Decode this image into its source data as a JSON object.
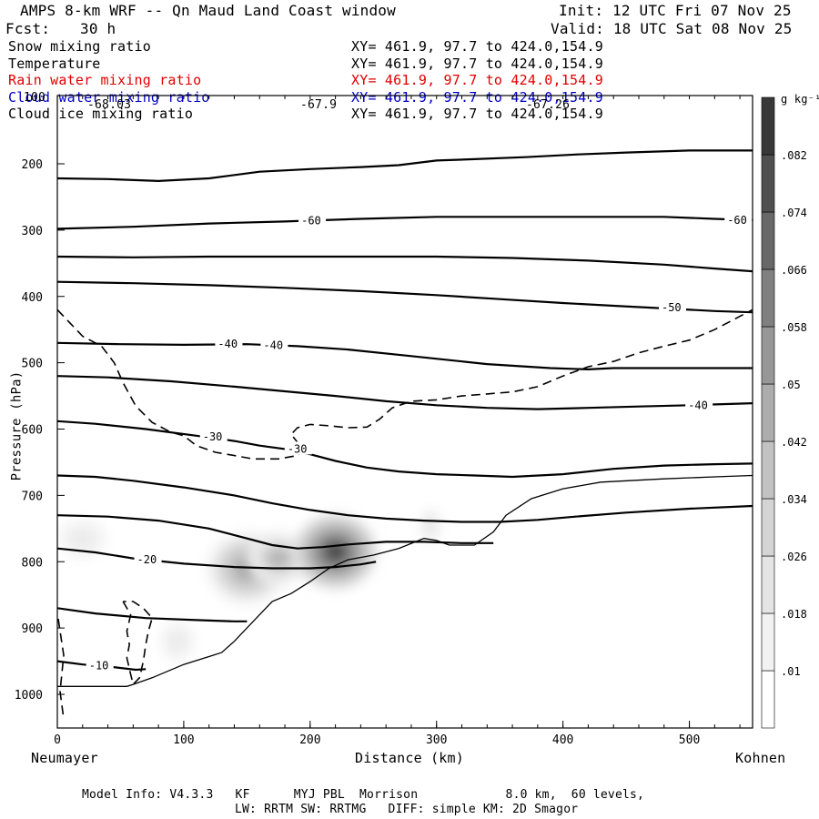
{
  "header": {
    "title": "AMPS 8-km WRF -- Qn Maud Land Coast window",
    "forecast_label": "Fcst:",
    "forecast_hours": "30 h",
    "init": "Init: 12 UTC Fri 07 Nov 25",
    "valid": "Valid: 18 UTC Sat 08 Nov 25"
  },
  "fields": [
    {
      "name": "Snow mixing ratio",
      "xy": "XY= 461.9, 97.7 to 424.0,154.9",
      "color": "#000000"
    },
    {
      "name": "Temperature",
      "xy": "XY= 461.9, 97.7 to 424.0,154.9",
      "color": "#000000"
    },
    {
      "name": "Rain water mixing ratio",
      "xy": "XY= 461.9, 97.7 to 424.0,154.9",
      "color": "#e00000"
    },
    {
      "name": "Cloud water mixing ratio",
      "xy": "XY= 461.9, 97.7 to 424.0,154.9",
      "color": "#0000c8"
    },
    {
      "name": "Cloud ice mixing ratio",
      "xy": "XY= 461.9, 97.7 to 424.0,154.9",
      "color": "#000000"
    }
  ],
  "overlay_labels": {
    "left": "-68.03",
    "mid": "-67.9",
    "right": "-67.26",
    "top_tick": "100"
  },
  "footer": {
    "line1": "Model Info: V4.3.3   KF      MYJ PBL  Morrison            8.0 km,  60 levels,",
    "line2": "LW: RRTM SW: RRTMG   DIFF: simple KM: 2D Smagor"
  },
  "chart_data": {
    "type": "contour",
    "xlabel": "Distance (km)",
    "ylabel": "Pressure (hPa)",
    "xlim": [
      0,
      550
    ],
    "ylim": [
      1050,
      100
    ],
    "x_ticks": [
      0,
      100,
      200,
      300,
      400,
      500
    ],
    "y_ticks": [
      200,
      300,
      400,
      500,
      600,
      700,
      800,
      900,
      1000
    ],
    "endpoint_left": "Neumayer",
    "endpoint_right": "Kohnen",
    "colorbar": {
      "unit": "g kg⁻¹",
      "levels": [
        0.01,
        0.018,
        0.026,
        0.034,
        0.042,
        0.05,
        0.058,
        0.066,
        0.074,
        0.082
      ],
      "labels": [
        ".01",
        ".018",
        ".026",
        ".034",
        ".042",
        ".05",
        ".058",
        ".066",
        ".074",
        ".082"
      ],
      "shades": [
        "#ffffff",
        "#f2f2f2",
        "#e4e4e4",
        "#d4d4d4",
        "#c2c2c2",
        "#adadad",
        "#979797",
        "#808080",
        "#686868",
        "#505050",
        "#383838"
      ]
    },
    "terrain": [
      [
        0,
        988
      ],
      [
        55,
        988
      ],
      [
        60,
        985
      ],
      [
        75,
        975
      ],
      [
        100,
        955
      ],
      [
        120,
        943
      ],
      [
        130,
        937
      ],
      [
        140,
        920
      ],
      [
        155,
        890
      ],
      [
        170,
        860
      ],
      [
        185,
        848
      ],
      [
        200,
        830
      ],
      [
        215,
        810
      ],
      [
        230,
        797
      ],
      [
        250,
        790
      ],
      [
        270,
        780
      ],
      [
        290,
        765
      ],
      [
        300,
        768
      ],
      [
        310,
        775
      ],
      [
        330,
        775
      ],
      [
        345,
        755
      ],
      [
        355,
        730
      ],
      [
        375,
        705
      ],
      [
        400,
        690
      ],
      [
        430,
        680
      ],
      [
        480,
        675
      ],
      [
        520,
        672
      ],
      [
        550,
        670
      ]
    ],
    "isotherms": [
      {
        "label": "-60",
        "points": [
          [
            0,
            222
          ],
          [
            40,
            223
          ],
          [
            80,
            226
          ],
          [
            120,
            222
          ],
          [
            160,
            212
          ],
          [
            200,
            208
          ],
          [
            240,
            205
          ],
          [
            270,
            202
          ],
          [
            300,
            195
          ],
          [
            330,
            193
          ],
          [
            370,
            190
          ],
          [
            410,
            186
          ],
          [
            450,
            183
          ],
          [
            500,
            180
          ],
          [
            550,
            180
          ]
        ],
        "label_positions": []
      },
      {
        "label": "-60",
        "points": [
          [
            0,
            298
          ],
          [
            60,
            295
          ],
          [
            120,
            290
          ],
          [
            180,
            287
          ],
          [
            240,
            283
          ],
          [
            300,
            280
          ],
          [
            360,
            280
          ],
          [
            420,
            280
          ],
          [
            480,
            280
          ],
          [
            520,
            283
          ],
          [
            550,
            285
          ]
        ],
        "label_positions": [
          [
            193,
            286
          ],
          [
            530,
            285
          ]
        ]
      },
      {
        "label": "",
        "points": [
          [
            0,
            340
          ],
          [
            60,
            341
          ],
          [
            120,
            340
          ],
          [
            180,
            340
          ],
          [
            240,
            340
          ],
          [
            300,
            340
          ],
          [
            360,
            342
          ],
          [
            420,
            346
          ],
          [
            480,
            352
          ],
          [
            520,
            358
          ],
          [
            550,
            362
          ]
        ],
        "label_positions": []
      },
      {
        "label": "-50",
        "points": [
          [
            0,
            378
          ],
          [
            60,
            380
          ],
          [
            120,
            383
          ],
          [
            180,
            387
          ],
          [
            240,
            392
          ],
          [
            300,
            398
          ],
          [
            350,
            404
          ],
          [
            400,
            410
          ],
          [
            440,
            414
          ],
          [
            480,
            418
          ],
          [
            520,
            422
          ],
          [
            550,
            424
          ]
        ],
        "label_positions": [
          [
            478,
            417
          ]
        ]
      },
      {
        "label": "-40",
        "points": [
          [
            0,
            470
          ],
          [
            50,
            472
          ],
          [
            100,
            473
          ],
          [
            150,
            472
          ],
          [
            190,
            475
          ],
          [
            230,
            480
          ],
          [
            280,
            490
          ],
          [
            340,
            502
          ],
          [
            390,
            508
          ],
          [
            420,
            510
          ],
          [
            440,
            508
          ],
          [
            480,
            508
          ],
          [
            520,
            508
          ],
          [
            550,
            508
          ]
        ],
        "label_positions": [
          [
            127,
            472
          ],
          [
            163,
            474
          ]
        ]
      },
      {
        "label": "-40",
        "points": [
          [
            0,
            520
          ],
          [
            40,
            522
          ],
          [
            90,
            528
          ],
          [
            140,
            536
          ],
          [
            180,
            543
          ],
          [
            220,
            550
          ],
          [
            260,
            558
          ],
          [
            300,
            564
          ],
          [
            340,
            568
          ],
          [
            380,
            570
          ],
          [
            420,
            568
          ],
          [
            460,
            566
          ],
          [
            500,
            564
          ],
          [
            550,
            561
          ]
        ],
        "label_positions": [
          [
            499,
            564
          ]
        ]
      },
      {
        "label": "-30",
        "points": [
          [
            0,
            588
          ],
          [
            30,
            592
          ],
          [
            70,
            600
          ],
          [
            110,
            610
          ],
          [
            140,
            618
          ],
          [
            160,
            625
          ],
          [
            180,
            630
          ],
          [
            200,
            638
          ],
          [
            220,
            648
          ],
          [
            245,
            658
          ],
          [
            270,
            664
          ],
          [
            300,
            668
          ],
          [
            330,
            670
          ],
          [
            360,
            672
          ],
          [
            400,
            668
          ],
          [
            440,
            660
          ],
          [
            480,
            655
          ],
          [
            520,
            653
          ],
          [
            550,
            652
          ]
        ],
        "label_positions": [
          [
            115,
            612
          ],
          [
            182,
            630
          ]
        ]
      },
      {
        "label": "",
        "points": [
          [
            0,
            670
          ],
          [
            30,
            672
          ],
          [
            60,
            678
          ],
          [
            100,
            688
          ],
          [
            140,
            700
          ],
          [
            170,
            712
          ],
          [
            200,
            722
          ],
          [
            230,
            730
          ],
          [
            260,
            735
          ],
          [
            290,
            738
          ],
          [
            320,
            740
          ],
          [
            350,
            740
          ],
          [
            380,
            737
          ],
          [
            410,
            732
          ],
          [
            450,
            726
          ],
          [
            500,
            720
          ],
          [
            550,
            716
          ]
        ],
        "label_positions": []
      },
      {
        "label": "",
        "points": [
          [
            0,
            730
          ],
          [
            40,
            732
          ],
          [
            80,
            738
          ],
          [
            120,
            750
          ],
          [
            150,
            765
          ],
          [
            170,
            775
          ],
          [
            190,
            780
          ],
          [
            210,
            778
          ],
          [
            230,
            774
          ],
          [
            260,
            770
          ],
          [
            290,
            770
          ],
          [
            320,
            772
          ],
          [
            345,
            772
          ]
        ],
        "label_positions": []
      },
      {
        "label": "-20",
        "points": [
          [
            0,
            780
          ],
          [
            30,
            786
          ],
          [
            60,
            795
          ],
          [
            100,
            803
          ],
          [
            140,
            808
          ],
          [
            170,
            810
          ],
          [
            200,
            810
          ],
          [
            220,
            808
          ],
          [
            240,
            804
          ],
          [
            252,
            800
          ]
        ],
        "label_positions": [
          [
            63,
            797
          ]
        ]
      },
      {
        "label": "",
        "points": [
          [
            0,
            870
          ],
          [
            30,
            878
          ],
          [
            70,
            885
          ],
          [
            110,
            888
          ],
          [
            140,
            890
          ],
          [
            150,
            890
          ]
        ],
        "label_positions": []
      },
      {
        "label": "-10",
        "points": [
          [
            0,
            950
          ],
          [
            20,
            955
          ],
          [
            40,
            958
          ],
          [
            62,
            963
          ],
          [
            70,
            962
          ]
        ],
        "label_positions": [
          [
            25,
            957
          ]
        ]
      }
    ],
    "freezing_level_dashed": [
      [
        0,
        420
      ],
      [
        10,
        440
      ],
      [
        20,
        460
      ],
      [
        35,
        475
      ],
      [
        45,
        500
      ],
      [
        52,
        530
      ],
      [
        62,
        565
      ],
      [
        75,
        590
      ],
      [
        90,
        605
      ],
      [
        100,
        610
      ],
      [
        110,
        625
      ],
      [
        125,
        635
      ],
      [
        140,
        640
      ],
      [
        155,
        645
      ],
      [
        175,
        645
      ],
      [
        190,
        640
      ],
      [
        195,
        630
      ],
      [
        190,
        620
      ],
      [
        185,
        608
      ],
      [
        190,
        598
      ],
      [
        200,
        593
      ],
      [
        215,
        595
      ],
      [
        230,
        598
      ],
      [
        245,
        597
      ],
      [
        255,
        585
      ],
      [
        265,
        568
      ],
      [
        280,
        558
      ],
      [
        300,
        556
      ],
      [
        320,
        550
      ],
      [
        340,
        547
      ],
      [
        360,
        544
      ],
      [
        380,
        536
      ],
      [
        400,
        520
      ],
      [
        420,
        506
      ],
      [
        440,
        498
      ],
      [
        460,
        485
      ],
      [
        480,
        475
      ],
      [
        500,
        466
      ],
      [
        520,
        450
      ],
      [
        540,
        430
      ],
      [
        550,
        420
      ]
    ],
    "low_dashed": [
      [
        52,
        860
      ],
      [
        58,
        880
      ],
      [
        55,
        905
      ],
      [
        57,
        925
      ],
      [
        55,
        945
      ],
      [
        58,
        970
      ],
      [
        60,
        985
      ],
      [
        65,
        975
      ],
      [
        68,
        950
      ],
      [
        70,
        925
      ],
      [
        72,
        905
      ],
      [
        75,
        885
      ],
      [
        68,
        870
      ],
      [
        60,
        860
      ],
      [
        52,
        860
      ]
    ],
    "shaded_regions": [
      {
        "cx": 20,
        "cy": 765,
        "rx": 25,
        "ry": 38,
        "peak": 0.02
      },
      {
        "cx": 95,
        "cy": 920,
        "rx": 18,
        "ry": 40,
        "peak": 0.02
      },
      {
        "cx": 150,
        "cy": 810,
        "rx": 32,
        "ry": 55,
        "peak": 0.05
      },
      {
        "cx": 175,
        "cy": 795,
        "rx": 25,
        "ry": 40,
        "peak": 0.045
      },
      {
        "cx": 220,
        "cy": 785,
        "rx": 32,
        "ry": 55,
        "peak": 0.082
      },
      {
        "cx": 295,
        "cy": 745,
        "rx": 10,
        "ry": 35,
        "peak": 0.025
      }
    ]
  }
}
